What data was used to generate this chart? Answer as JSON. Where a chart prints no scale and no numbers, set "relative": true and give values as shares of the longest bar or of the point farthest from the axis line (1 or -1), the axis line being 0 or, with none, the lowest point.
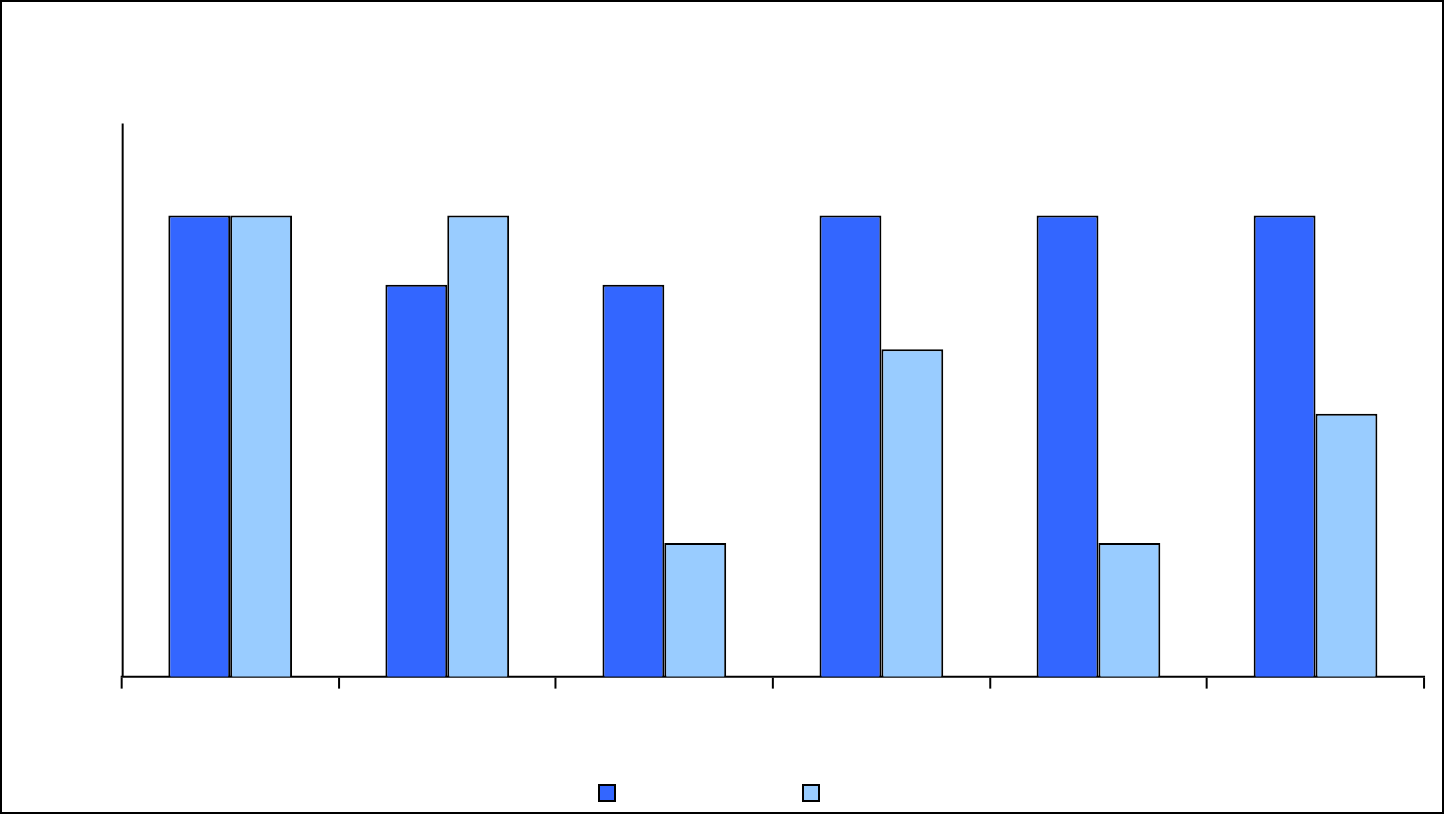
{
  "chart_data": {
    "type": "bar",
    "relative": true,
    "categories": [
      null,
      null,
      null,
      null,
      null,
      null
    ],
    "series": [
      {
        "color": "#3366ff",
        "values": [
          1,
          0.85,
          0.85,
          1,
          1,
          1
        ]
      },
      {
        "color": "#99ccff",
        "values": [
          1,
          1,
          0.29,
          0.71,
          0.29,
          0.57
        ]
      }
    ],
    "grid": false
  }
}
